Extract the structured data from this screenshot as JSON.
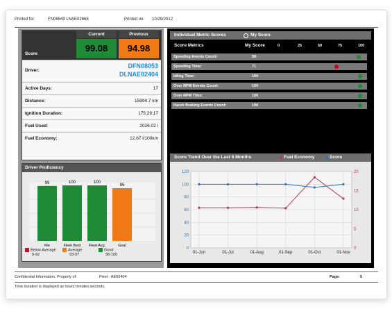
{
  "header": {
    "printed_for_label": "Printed for:",
    "printed_for_value": "FN06849 LNAE02668",
    "printed_on_label": "Printed on:",
    "printed_on_value": "10/29/2012"
  },
  "score": {
    "label": "Score",
    "current_label": "Current",
    "previous_label": "Previous",
    "current_value": "99.08",
    "previous_value": "94.98",
    "current_color": "#1e8a38",
    "previous_color": "#f07a16"
  },
  "driver": {
    "label": "Driver:",
    "id1": "DFN08053",
    "id2": "DLNAE02404",
    "id_color": "#1b8ee0"
  },
  "stats": [
    {
      "label": "Active Days:",
      "value": "17"
    },
    {
      "label": "Distance:",
      "value": "15994.7 km"
    },
    {
      "label": "Ignition Duration:",
      "value": "175:29:17"
    },
    {
      "label": "Fuel Used:",
      "value": "2026.02 l"
    },
    {
      "label": "Fuel Economy:",
      "value": "12.67 l/100km"
    }
  ],
  "proficiency": {
    "title": "Driver Proficiency",
    "legend": [
      {
        "label": "Below Average",
        "range": "0-92",
        "color": "#c8102e"
      },
      {
        "label": "Average",
        "range": "93-97",
        "color": "#f07a16"
      },
      {
        "label": "Good",
        "range": "98-100",
        "color": "#1e8a38"
      }
    ]
  },
  "metrics": {
    "title": "Individual Metric Scores",
    "legend_label": "My Score",
    "col1": "Score Metrics",
    "col2": "My Score",
    "scale": [
      "0",
      "25",
      "50",
      "75",
      "100"
    ],
    "rows": [
      {
        "label": "Speeding Events Count:",
        "value": "98",
        "score": 98,
        "status_color": "#1e8a38"
      },
      {
        "label": "Speeding Time:",
        "value": "71",
        "score": 71,
        "status_color": "#d0021b"
      },
      {
        "label": "Idling Time:",
        "value": "100",
        "score": 100,
        "status_color": "#1e8a38"
      },
      {
        "label": "Over RPM Events Count:",
        "value": "100",
        "score": 100,
        "status_color": "#1e8a38"
      },
      {
        "label": "Over RPM Time:",
        "value": "100",
        "score": 100,
        "status_color": "#1e8a38"
      },
      {
        "label": "Harsh Braking Events Count:",
        "value": "100",
        "score": 100,
        "status_color": "#1e8a38"
      }
    ]
  },
  "trend": {
    "title": "Score Trend Over the Last 6 Months"
  },
  "footer": {
    "confidential": "Confidential Information. Property of:",
    "fleet": "Fleet - AE02404",
    "page_label": "Page:",
    "page_value": "5",
    "note": "Time duration is displayed as hours:minutes:seconds."
  },
  "chart_data": [
    {
      "type": "bar",
      "title": "Driver Proficiency",
      "categories": [
        "Me",
        "Fleet Best",
        "Fleet Avg.",
        "Goal"
      ],
      "values": [
        99,
        100,
        100,
        95
      ],
      "colors": [
        "#1e8a38",
        "#1e8a38",
        "#1e8a38",
        "#f07a16"
      ],
      "ylim": [
        0,
        100
      ],
      "grid": true
    },
    {
      "type": "line",
      "title": "Score Trend Over the Last 6 Months",
      "x": [
        "01-Jun",
        "01-Jul",
        "01-Aug",
        "01-Sep",
        "01-Oct",
        "01-Nov"
      ],
      "series": [
        {
          "name": "Fuel Economy",
          "axis": "right",
          "color": "#b0365f",
          "values": [
            10.5,
            10.5,
            10.6,
            10.4,
            18.5,
            12.9
          ]
        },
        {
          "name": "Score",
          "axis": "left",
          "color": "#2c72b8",
          "values": [
            100,
            100,
            100,
            100,
            95,
            100
          ]
        }
      ],
      "yleft_ticks": [
        0,
        20,
        40,
        60,
        80,
        100,
        120
      ],
      "yright_ticks": [
        0,
        5,
        10,
        15,
        20
      ],
      "ylim_left": [
        0,
        120
      ],
      "ylim_right": [
        0,
        20
      ],
      "grid": true,
      "legend": "top"
    }
  ]
}
